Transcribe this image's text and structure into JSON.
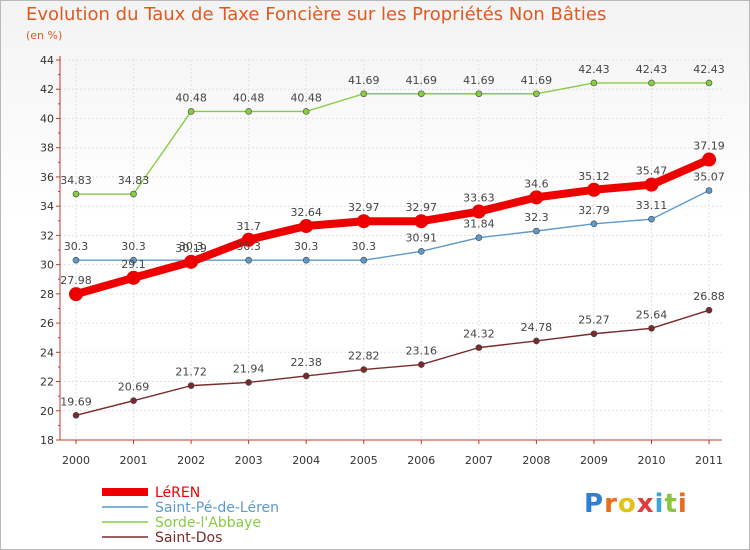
{
  "chart_data": {
    "type": "line",
    "title": "Evolution du Taux de Taxe Foncière sur les Propriétés Non Bâties",
    "unit_label": "(en %)",
    "xlabel": "",
    "ylabel": "",
    "x": [
      2000,
      2001,
      2002,
      2003,
      2004,
      2005,
      2006,
      2007,
      2008,
      2009,
      2010,
      2011
    ],
    "ylim": [
      18,
      44
    ],
    "yticks": [
      18,
      20,
      22,
      24,
      26,
      28,
      30,
      32,
      34,
      36,
      38,
      40,
      42,
      44
    ],
    "series": [
      {
        "name": "LéREN",
        "color": "#ee0000",
        "values": [
          27.98,
          29.1,
          30.19,
          31.7,
          32.64,
          32.97,
          32.97,
          33.63,
          34.6,
          35.12,
          35.47,
          37.19
        ],
        "labels": [
          "27.98",
          "29.1",
          "30.19",
          "31.7",
          "32.64",
          "32.97",
          "32.97",
          "33.63",
          "34.6",
          "35.12",
          "35.47",
          "37.19"
        ]
      },
      {
        "name": "Saint-Pé-de-Léren",
        "color": "#5c9acc",
        "values": [
          30.3,
          30.3,
          30.3,
          30.3,
          30.3,
          30.3,
          30.91,
          31.84,
          32.3,
          32.79,
          33.11,
          35.07
        ],
        "labels": [
          "30.3",
          "30.3",
          "30.3",
          "30.3",
          "30.3",
          "30.3",
          "30.91",
          "31.84",
          "32.3",
          "32.79",
          "33.11",
          "35.07"
        ]
      },
      {
        "name": "Sorde-l'Abbaye",
        "color": "#88cc44",
        "values": [
          34.83,
          34.83,
          40.48,
          40.48,
          40.48,
          41.69,
          41.69,
          41.69,
          41.69,
          42.43,
          42.43,
          42.43
        ],
        "labels": [
          "34.83",
          "34.83",
          "40.48",
          "40.48",
          "40.48",
          "41.69",
          "41.69",
          "41.69",
          "41.69",
          "42.43",
          "42.43",
          "42.43"
        ]
      },
      {
        "name": "Saint-Dos",
        "color": "#7a2a2a",
        "values": [
          19.69,
          20.69,
          21.72,
          21.94,
          22.38,
          22.82,
          23.16,
          24.32,
          24.78,
          25.27,
          25.64,
          26.88
        ],
        "labels": [
          "19.69",
          "20.69",
          "21.72",
          "21.94",
          "22.38",
          "22.82",
          "23.16",
          "24.32",
          "24.78",
          "25.27",
          "25.64",
          "26.88"
        ]
      }
    ]
  },
  "branding": {
    "logo_letters": [
      "P",
      "r",
      "o",
      "x",
      "i",
      "t",
      "i"
    ],
    "logo_colors": [
      "#2f7fd1",
      "#e96b1c",
      "#e0c21a",
      "#e23b3b",
      "#3aa7d8",
      "#8cc63f",
      "#e96b1c"
    ]
  }
}
